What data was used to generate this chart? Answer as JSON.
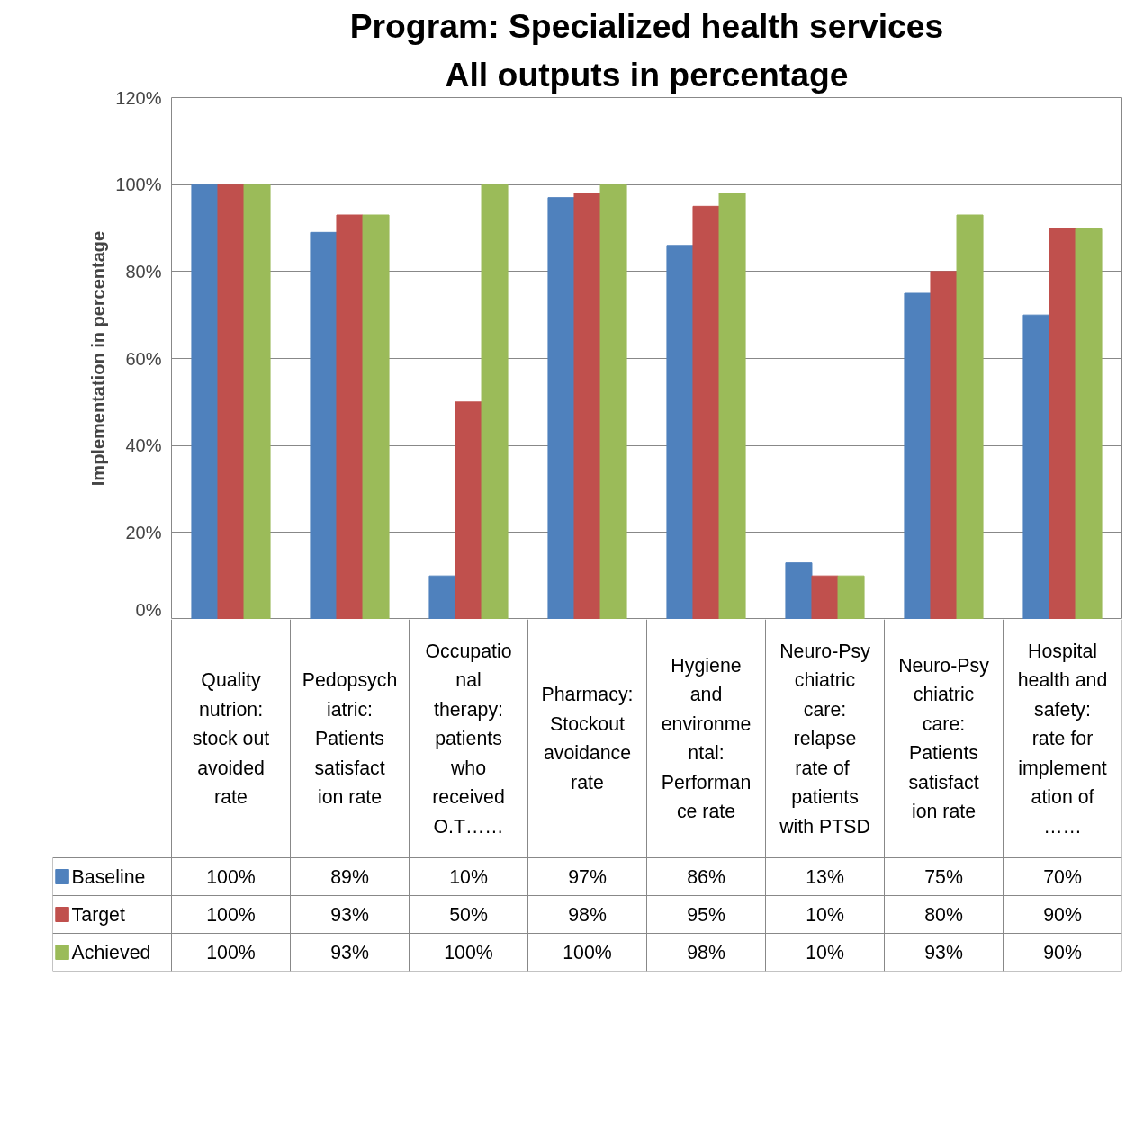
{
  "chart_data": {
    "type": "bar",
    "title": "Program: Specialized health services",
    "subtitle": "All outputs in percentage",
    "ylabel": "Implementation in percentage",
    "categories": [
      "Quality nutrion: stock out avoided rate",
      "Pedopsychiatric: Patients satisfaction rate",
      "Occupational therapy: patients who received O.T……",
      "Pharmacy: Stockout avoidance rate",
      "Hygiene and environmental: Performance rate",
      "Neuro-Psychiatric care: relapse rate  of patients with PTSD",
      "Neuro-Psychiatric care: Patients satisfaction rate",
      "Hospital health and safety: rate for implementation of ……"
    ],
    "series": [
      {
        "name": "Baseline",
        "color": "#4f81bd",
        "values": [
          100,
          89,
          10,
          97,
          86,
          13,
          75,
          70
        ],
        "value_labels": [
          "100%",
          "89%",
          "10%",
          "97%",
          "86%",
          "13%",
          "75%",
          "70%"
        ]
      },
      {
        "name": "Target",
        "color": "#c0504d",
        "values": [
          100,
          93,
          50,
          98,
          95,
          10,
          80,
          90
        ],
        "value_labels": [
          "100%",
          "93%",
          "50%",
          "98%",
          "95%",
          "10%",
          "80%",
          "90%"
        ]
      },
      {
        "name": "Achieved",
        "color": "#9bbb59",
        "values": [
          100,
          93,
          100,
          100,
          98,
          10,
          93,
          90
        ],
        "value_labels": [
          "100%",
          "93%",
          "100%",
          "100%",
          "98%",
          "10%",
          "93%",
          "90%"
        ]
      }
    ],
    "ylim": [
      0,
      120
    ],
    "yticks": [
      {
        "value": 0,
        "label": "0%"
      },
      {
        "value": 20,
        "label": "20%"
      },
      {
        "value": 40,
        "label": "40%"
      },
      {
        "value": 60,
        "label": "60%"
      },
      {
        "value": 80,
        "label": "80%"
      },
      {
        "value": 100,
        "label": "100%"
      },
      {
        "value": 120,
        "label": "120%"
      }
    ],
    "grid": "y",
    "legend": "bottom"
  }
}
